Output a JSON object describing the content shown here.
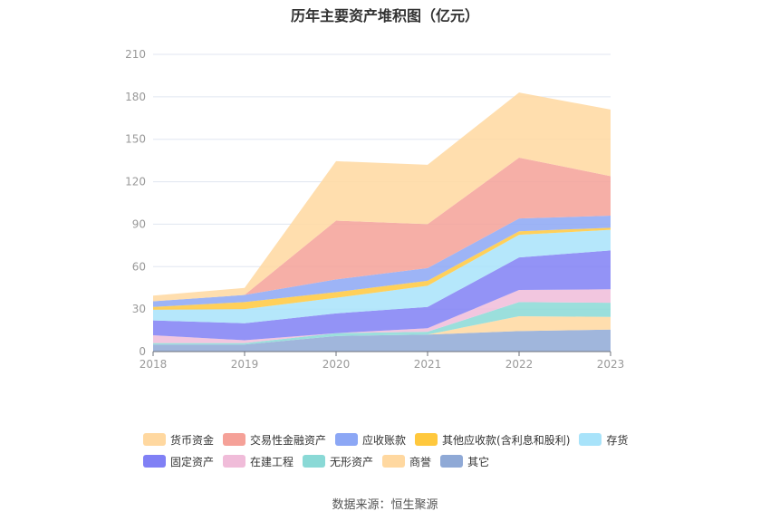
{
  "title": "历年主要资产堆积图（亿元）",
  "source": "数据来源：恒生聚源",
  "chart_data": {
    "type": "area",
    "stacked": true,
    "title": "历年主要资产堆积图（亿元）",
    "categories": [
      "2018",
      "2019",
      "2020",
      "2021",
      "2022",
      "2023"
    ],
    "ylim": [
      0,
      210
    ],
    "yticks": [
      0,
      30,
      60,
      90,
      120,
      150,
      180,
      210
    ],
    "grid": true,
    "legend_position": "bottom",
    "series": [
      {
        "name": "其它",
        "color": "#8fa9d6",
        "values": [
          5,
          5,
          11,
          12,
          14.5,
          15.5
        ]
      },
      {
        "name": "商誉",
        "color": "#ffd8a0",
        "values": [
          0,
          0,
          0,
          0,
          10.5,
          9
        ]
      },
      {
        "name": "无形资产",
        "color": "#8ad9d6",
        "values": [
          1,
          1,
          2,
          2,
          10,
          10
        ]
      },
      {
        "name": "在建工程",
        "color": "#f0bcd9",
        "values": [
          5.5,
          2,
          0,
          2.5,
          8.5,
          9.5
        ]
      },
      {
        "name": "固定资产",
        "color": "#8080f5",
        "values": [
          10.5,
          12,
          14,
          15,
          23,
          27.5
        ]
      },
      {
        "name": "存货",
        "color": "#a8e3fa",
        "values": [
          7.5,
          10,
          11,
          15,
          16,
          14.5
        ]
      },
      {
        "name": "其他应收款(含利息和股利)",
        "color": "#ffc83d",
        "values": [
          2,
          5,
          4,
          3.5,
          2.5,
          1.5
        ]
      },
      {
        "name": "应收账款",
        "color": "#8ca7f5",
        "values": [
          4,
          5,
          9,
          9,
          9,
          8.5
        ]
      },
      {
        "name": "交易性金融资产",
        "color": "#f5a198",
        "values": [
          0,
          0,
          41.5,
          31,
          43,
          28
        ]
      },
      {
        "name": "货币资金",
        "color": "#ffd8a0",
        "values": [
          4,
          5,
          42,
          42,
          46,
          47
        ]
      }
    ],
    "legend_order": [
      "货币资金",
      "交易性金融资产",
      "应收账款",
      "其他应收款(含利息和股利)",
      "存货",
      "固定资产",
      "在建工程",
      "无形资产",
      "商誉",
      "其它"
    ]
  }
}
